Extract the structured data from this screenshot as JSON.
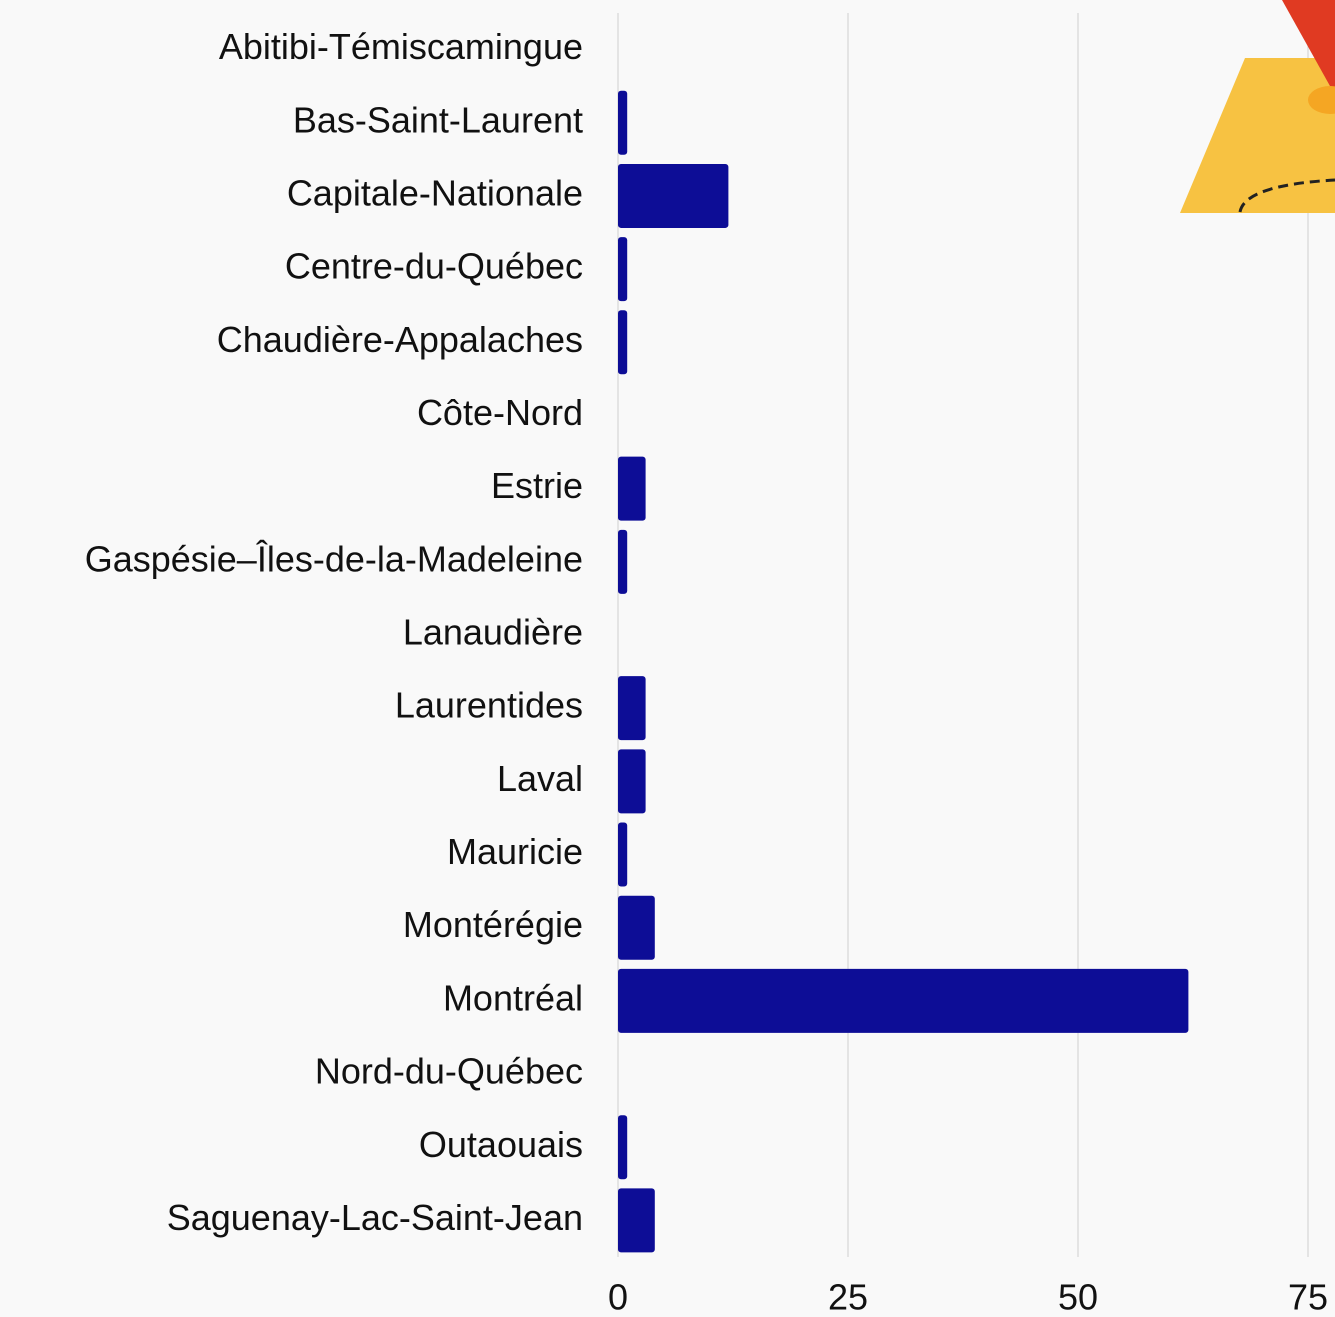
{
  "chart_data": {
    "type": "bar",
    "orientation": "horizontal",
    "categories": [
      "Abitibi-Témiscamingue",
      "Bas-Saint-Laurent",
      "Capitale-Nationale",
      "Centre-du-Québec",
      "Chaudière-Appalaches",
      "Côte-Nord",
      "Estrie",
      "Gaspésie–Îles-de-la-Madeleine",
      "Lanaudière",
      "Laurentides",
      "Laval",
      "Mauricie",
      "Montérégie",
      "Montréal",
      "Nord-du-Québec",
      "Outaouais",
      "Saguenay-Lac-Saint-Jean"
    ],
    "values": [
      0,
      1,
      12,
      1,
      1,
      0,
      3,
      1,
      0,
      3,
      3,
      1,
      4,
      62,
      0,
      1,
      4
    ],
    "color": "#0d0d96",
    "xlim": [
      0,
      75
    ],
    "xticks": [
      0,
      25,
      50,
      75
    ],
    "grid": true
  }
}
